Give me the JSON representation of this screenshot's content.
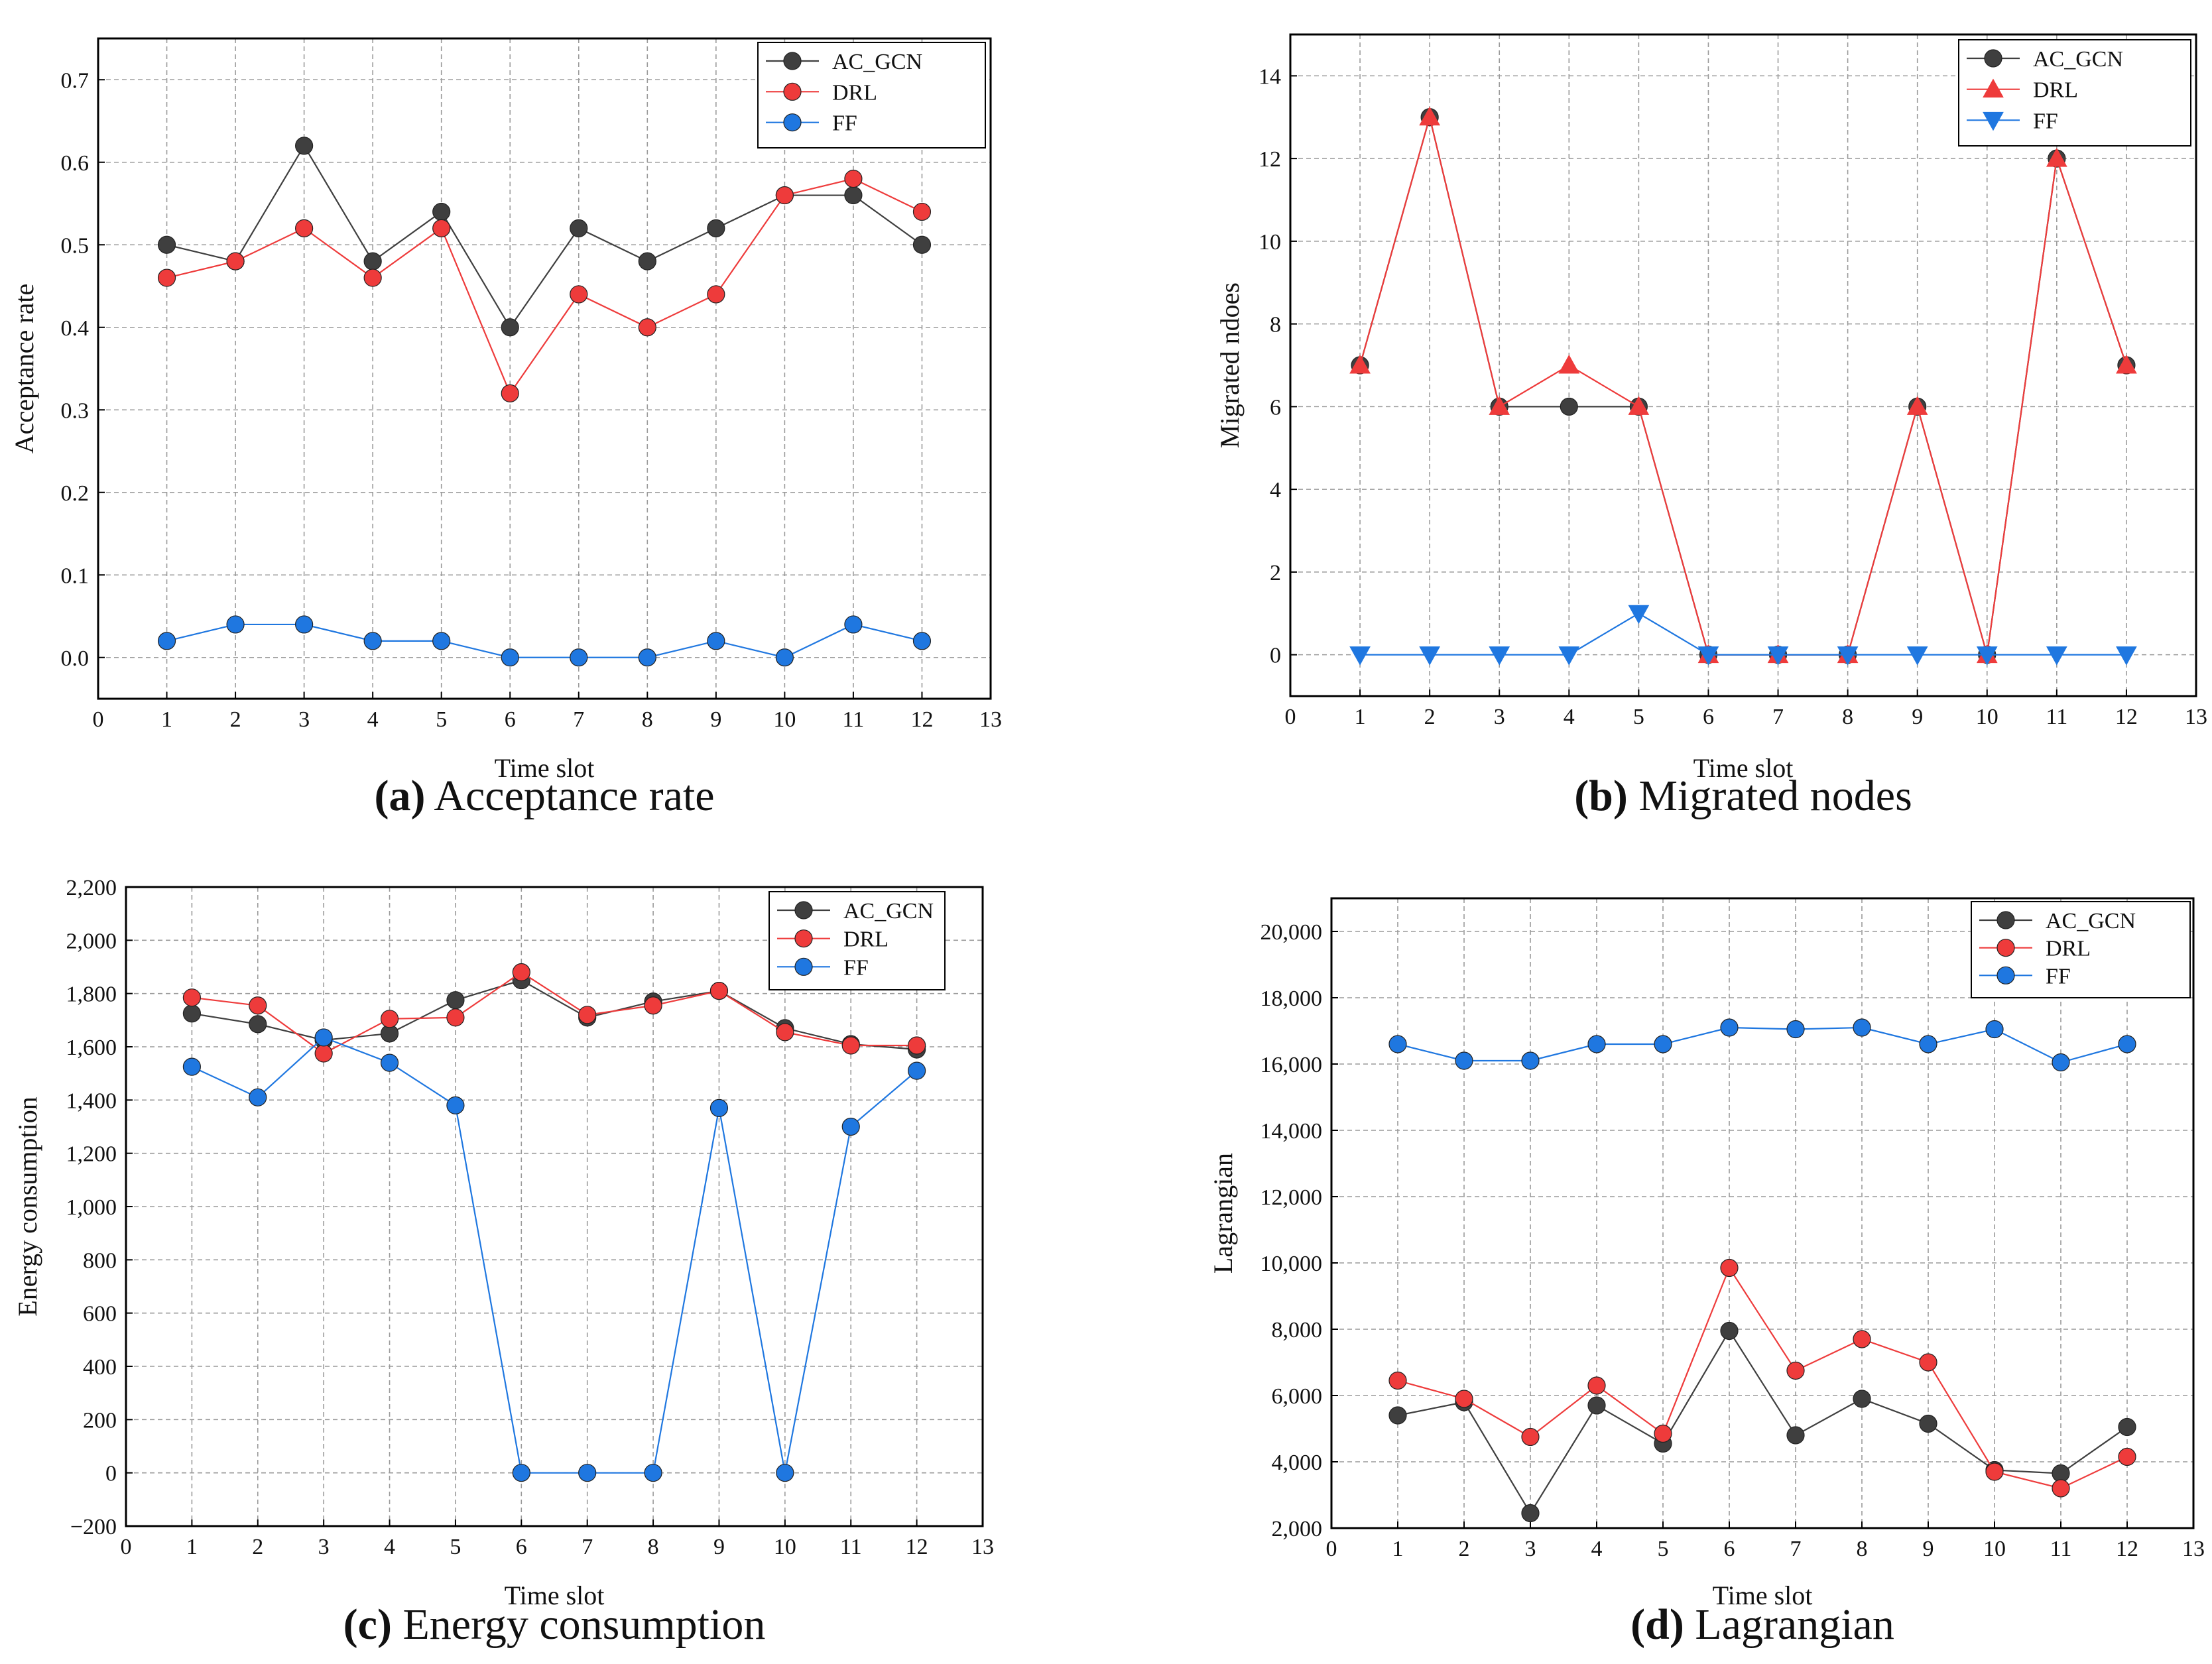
{
  "colors": {
    "ac_gcn": "#3f3f3f",
    "drl": "#ee3b3b",
    "ff": "#1f77e0",
    "grid": "#9a9a9a",
    "axis": "#000000"
  },
  "chart_data": [
    {
      "id": "a",
      "type": "line",
      "caption_letter": "(a)",
      "caption_text": " Acceptance rate",
      "xlabel": "Time slot",
      "ylabel": "Acceptance rate",
      "xlim": [
        0,
        13
      ],
      "ylim": [
        -0.05,
        0.75
      ],
      "xticks": [
        0,
        1,
        2,
        3,
        4,
        5,
        6,
        7,
        8,
        9,
        10,
        11,
        12,
        13
      ],
      "yticks": [
        0.0,
        0.1,
        0.2,
        0.3,
        0.4,
        0.5,
        0.6,
        0.7
      ],
      "ytick_labels": [
        "0.0",
        "0.1",
        "0.2",
        "0.3",
        "0.4",
        "0.5",
        "0.6",
        "0.7"
      ],
      "grid": true,
      "legend_position": "top-right",
      "x": [
        1,
        2,
        3,
        4,
        5,
        6,
        7,
        8,
        9,
        10,
        11,
        12
      ],
      "series": [
        {
          "name": "AC_GCN",
          "marker": "circle",
          "color_key": "ac_gcn",
          "values": [
            0.5,
            0.48,
            0.62,
            0.48,
            0.54,
            0.4,
            0.52,
            0.48,
            0.52,
            0.56,
            0.56,
            0.5
          ]
        },
        {
          "name": "DRL",
          "marker": "circle",
          "color_key": "drl",
          "values": [
            0.46,
            0.48,
            0.52,
            0.46,
            0.52,
            0.32,
            0.44,
            0.4,
            0.44,
            0.56,
            0.58,
            0.54
          ]
        },
        {
          "name": "FF",
          "marker": "circle",
          "color_key": "ff",
          "values": [
            0.02,
            0.04,
            0.04,
            0.02,
            0.02,
            0.0,
            0.0,
            0.0,
            0.02,
            0.0,
            0.04,
            0.02
          ]
        }
      ]
    },
    {
      "id": "b",
      "type": "line",
      "caption_letter": "(b)",
      "caption_text": " Migrated nodes",
      "xlabel": "Time slot",
      "ylabel": "Migrated ndoes",
      "xlim": [
        0,
        13
      ],
      "ylim": [
        -1,
        15
      ],
      "xticks": [
        0,
        1,
        2,
        3,
        4,
        5,
        6,
        7,
        8,
        9,
        10,
        11,
        12,
        13
      ],
      "yticks": [
        0,
        2,
        4,
        6,
        8,
        10,
        12,
        14
      ],
      "ytick_labels": [
        "0",
        "2",
        "4",
        "6",
        "8",
        "10",
        "12",
        "14"
      ],
      "grid": true,
      "legend_position": "top-right",
      "x": [
        1,
        2,
        3,
        4,
        5,
        6,
        7,
        8,
        9,
        10,
        11,
        12
      ],
      "series": [
        {
          "name": "AC_GCN",
          "marker": "circle",
          "color_key": "ac_gcn",
          "values": [
            7,
            13,
            6,
            6,
            6,
            0,
            0,
            0,
            6,
            0,
            12,
            7
          ]
        },
        {
          "name": "DRL",
          "marker": "triangle-up",
          "color_key": "drl",
          "values": [
            7,
            13,
            6,
            7,
            6,
            0,
            0,
            0,
            6,
            0,
            12,
            7
          ]
        },
        {
          "name": "FF",
          "marker": "triangle-down",
          "color_key": "ff",
          "values": [
            0,
            0,
            0,
            0,
            1,
            0,
            0,
            0,
            0,
            0,
            0,
            0
          ]
        }
      ]
    },
    {
      "id": "c",
      "type": "line",
      "caption_letter": "(c)",
      "caption_text": " Energy consumption",
      "xlabel": "Time slot",
      "ylabel": "Energy consumption",
      "xlim": [
        0,
        13
      ],
      "ylim": [
        -200,
        2200
      ],
      "xticks": [
        0,
        1,
        2,
        3,
        4,
        5,
        6,
        7,
        8,
        9,
        10,
        11,
        12,
        13
      ],
      "yticks": [
        -200,
        0,
        200,
        400,
        600,
        800,
        1000,
        1200,
        1400,
        1600,
        1800,
        2000,
        2200
      ],
      "ytick_labels": [
        "−200",
        "0",
        "200",
        "400",
        "600",
        "800",
        "1,000",
        "1,200",
        "1,400",
        "1,600",
        "1,800",
        "2,000",
        "2,200"
      ],
      "grid": true,
      "legend_position": "top-right",
      "x": [
        1,
        2,
        3,
        4,
        5,
        6,
        7,
        8,
        9,
        10,
        11,
        12
      ],
      "series": [
        {
          "name": "AC_GCN",
          "marker": "circle",
          "color_key": "ac_gcn",
          "values": [
            1725,
            1685,
            1625,
            1650,
            1775,
            1850,
            1710,
            1770,
            1810,
            1670,
            1610,
            1590
          ]
        },
        {
          "name": "DRL",
          "marker": "circle",
          "color_key": "drl",
          "values": [
            1785,
            1755,
            1575,
            1705,
            1710,
            1880,
            1720,
            1755,
            1810,
            1655,
            1605,
            1605
          ]
        },
        {
          "name": "FF",
          "marker": "circle",
          "color_key": "ff",
          "values": [
            1525,
            1410,
            1635,
            1540,
            1380,
            0,
            0,
            0,
            1370,
            0,
            1300,
            1510
          ]
        }
      ]
    },
    {
      "id": "d",
      "type": "line",
      "caption_letter": "(d)",
      "caption_text": " Lagrangian",
      "xlabel": "Time slot",
      "ylabel": "Lagrangian",
      "xlim": [
        0,
        13
      ],
      "ylim": [
        2000,
        21000
      ],
      "xticks": [
        0,
        1,
        2,
        3,
        4,
        5,
        6,
        7,
        8,
        9,
        10,
        11,
        12,
        13
      ],
      "yticks": [
        2000,
        4000,
        6000,
        8000,
        10000,
        12000,
        14000,
        16000,
        18000,
        20000
      ],
      "ytick_labels": [
        "2,000",
        "4,000",
        "6,000",
        "8,000",
        "10,000",
        "12,000",
        "14,000",
        "16,000",
        "18,000",
        "20,000"
      ],
      "grid": true,
      "legend_position": "top-right",
      "x": [
        1,
        2,
        3,
        4,
        5,
        6,
        7,
        8,
        9,
        10,
        11,
        12
      ],
      "series": [
        {
          "name": "AC_GCN",
          "marker": "circle",
          "color_key": "ac_gcn",
          "values": [
            5400,
            5800,
            2450,
            5700,
            4550,
            7950,
            4800,
            5900,
            5150,
            3750,
            3650,
            5050
          ]
        },
        {
          "name": "DRL",
          "marker": "circle",
          "color_key": "drl",
          "values": [
            6450,
            5900,
            4750,
            6300,
            4850,
            9850,
            6750,
            7700,
            7000,
            3700,
            3200,
            4150
          ]
        },
        {
          "name": "FF",
          "marker": "circle",
          "color_key": "ff",
          "values": [
            16600,
            16100,
            16100,
            16600,
            16600,
            17100,
            17050,
            17100,
            16600,
            17050,
            16050,
            16600
          ]
        }
      ]
    }
  ]
}
